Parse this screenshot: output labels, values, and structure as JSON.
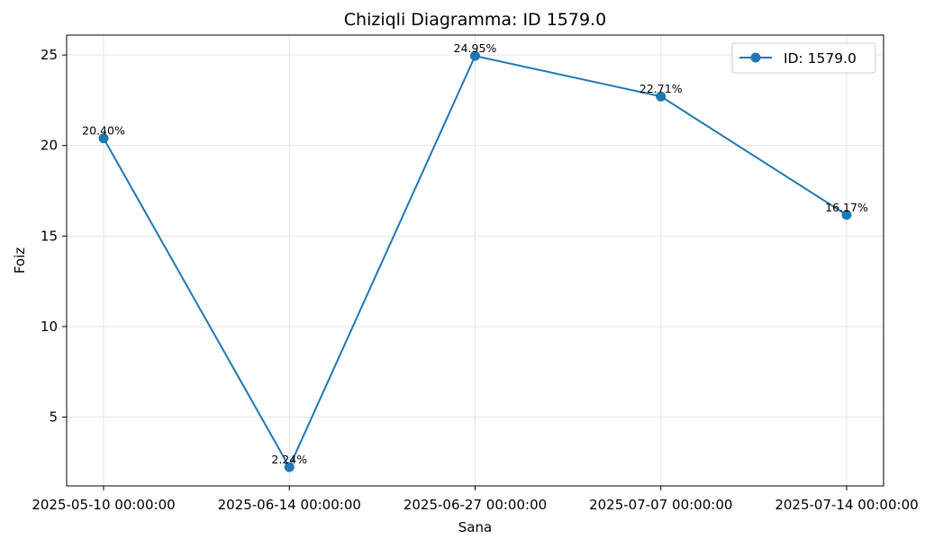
{
  "chart_data": {
    "type": "line",
    "title": "Chiziqli Diagramma: ID 1579.0",
    "xlabel": "Sana",
    "ylabel": "Foiz",
    "categories": [
      "2025-05-10 00:00:00",
      "2025-06-14 00:00:00",
      "2025-06-27 00:00:00",
      "2025-07-07 00:00:00",
      "2025-07-14 00:00:00"
    ],
    "series": [
      {
        "name": "ID: 1579.0",
        "values": [
          20.4,
          2.24,
          24.95,
          22.71,
          16.17
        ],
        "labels": [
          "20.40%",
          "2.24%",
          "24.95%",
          "22.71%",
          "16.17%"
        ],
        "color": "#1f77b4"
      }
    ],
    "yticks": [
      "5",
      "10",
      "15",
      "20",
      "25"
    ],
    "ylim": [
      1.2,
      26.1
    ],
    "grid": true,
    "legend_position": "top-right"
  }
}
